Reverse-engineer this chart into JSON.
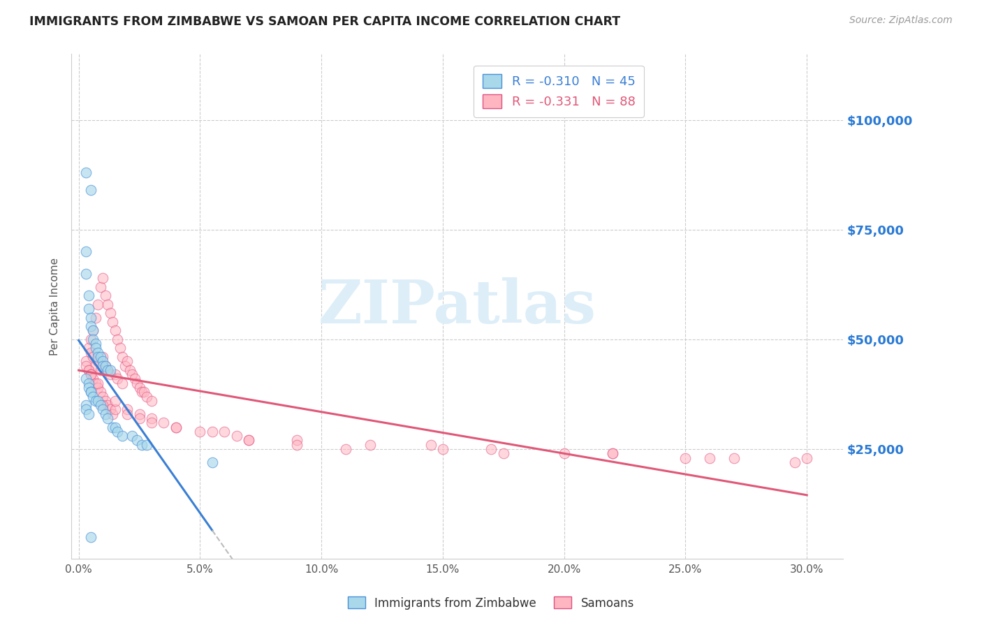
{
  "title": "IMMIGRANTS FROM ZIMBABWE VS SAMOAN PER CAPITA INCOME CORRELATION CHART",
  "source": "Source: ZipAtlas.com",
  "ylabel": "Per Capita Income",
  "xlabel_ticks": [
    "0.0%",
    "5.0%",
    "10.0%",
    "15.0%",
    "20.0%",
    "25.0%",
    "30.0%"
  ],
  "xlabel_vals": [
    0.0,
    0.05,
    0.1,
    0.15,
    0.2,
    0.25,
    0.3
  ],
  "ytick_labels": [
    "$25,000",
    "$50,000",
    "$75,000",
    "$100,000"
  ],
  "ytick_vals": [
    25000,
    50000,
    75000,
    100000
  ],
  "ylim": [
    0,
    115000
  ],
  "xlim": [
    -0.003,
    0.315
  ],
  "series1_label": "Immigrants from Zimbabwe",
  "series2_label": "Samoans",
  "series1_color": "#a8d8ea",
  "series2_color": "#ffb6c1",
  "series1_edge_color": "#4a90d9",
  "series2_edge_color": "#e05080",
  "trendline1_color": "#3a7fd5",
  "trendline2_color": "#e05878",
  "trendline1_ext_color": "#bbbbbb",
  "watermark_text": "ZIPatlas",
  "watermark_color": "#ddeef8",
  "series1_x": [
    0.003,
    0.005,
    0.003,
    0.003,
    0.004,
    0.004,
    0.005,
    0.005,
    0.006,
    0.006,
    0.007,
    0.007,
    0.008,
    0.008,
    0.009,
    0.01,
    0.01,
    0.011,
    0.012,
    0.013,
    0.003,
    0.004,
    0.004,
    0.005,
    0.005,
    0.006,
    0.007,
    0.008,
    0.009,
    0.01,
    0.011,
    0.012,
    0.014,
    0.015,
    0.016,
    0.018,
    0.022,
    0.024,
    0.026,
    0.028,
    0.003,
    0.003,
    0.004,
    0.055,
    0.005
  ],
  "series1_y": [
    88000,
    84000,
    70000,
    65000,
    60000,
    57000,
    55000,
    53000,
    52000,
    50000,
    49000,
    48000,
    47000,
    46000,
    46000,
    45000,
    44000,
    44000,
    43000,
    43000,
    41000,
    40000,
    39000,
    38000,
    38000,
    37000,
    36000,
    36000,
    35000,
    34000,
    33000,
    32000,
    30000,
    30000,
    29000,
    28000,
    28000,
    27000,
    26000,
    26000,
    35000,
    34000,
    33000,
    22000,
    5000
  ],
  "series2_x": [
    0.003,
    0.004,
    0.004,
    0.005,
    0.005,
    0.006,
    0.006,
    0.007,
    0.007,
    0.008,
    0.008,
    0.009,
    0.009,
    0.01,
    0.01,
    0.011,
    0.011,
    0.012,
    0.012,
    0.013,
    0.013,
    0.014,
    0.015,
    0.015,
    0.016,
    0.016,
    0.017,
    0.018,
    0.018,
    0.019,
    0.02,
    0.021,
    0.022,
    0.023,
    0.024,
    0.025,
    0.026,
    0.027,
    0.028,
    0.03,
    0.003,
    0.004,
    0.005,
    0.006,
    0.007,
    0.008,
    0.009,
    0.01,
    0.011,
    0.012,
    0.013,
    0.014,
    0.02,
    0.025,
    0.03,
    0.035,
    0.04,
    0.055,
    0.06,
    0.065,
    0.07,
    0.09,
    0.12,
    0.145,
    0.17,
    0.2,
    0.22,
    0.25,
    0.27,
    0.295,
    0.01,
    0.015,
    0.02,
    0.025,
    0.03,
    0.04,
    0.05,
    0.07,
    0.09,
    0.11,
    0.15,
    0.175,
    0.22,
    0.26,
    0.3,
    0.005,
    0.008,
    0.015
  ],
  "series2_y": [
    45000,
    48000,
    43000,
    50000,
    47000,
    52000,
    46000,
    55000,
    44000,
    58000,
    45000,
    62000,
    43000,
    64000,
    46000,
    60000,
    44000,
    58000,
    43000,
    56000,
    42000,
    54000,
    52000,
    42000,
    50000,
    41000,
    48000,
    46000,
    40000,
    44000,
    45000,
    43000,
    42000,
    41000,
    40000,
    39000,
    38000,
    38000,
    37000,
    36000,
    44000,
    43000,
    42000,
    41000,
    40000,
    39000,
    38000,
    37000,
    36000,
    35000,
    34000,
    33000,
    34000,
    33000,
    32000,
    31000,
    30000,
    29000,
    29000,
    28000,
    27000,
    27000,
    26000,
    26000,
    25000,
    24000,
    24000,
    23000,
    23000,
    22000,
    35000,
    34000,
    33000,
    32000,
    31000,
    30000,
    29000,
    27000,
    26000,
    25000,
    25000,
    24000,
    24000,
    23000,
    23000,
    42000,
    40000,
    36000
  ],
  "trendline1_x_start": 0.0,
  "trendline1_x_solid_end": 0.055,
  "trendline1_x_dash_end": 0.3,
  "trendline2_x_start": 0.0,
  "trendline2_x_end": 0.3
}
